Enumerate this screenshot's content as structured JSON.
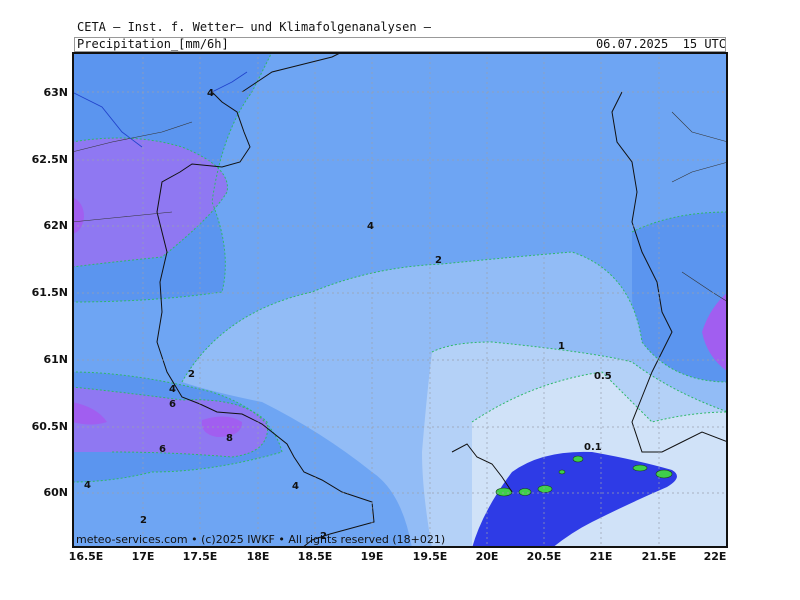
{
  "header": {
    "title": "CETA — Inst. f. Wetter— und Klimafolgenanalysen —",
    "variable": "Precipitation_[mm/6h]",
    "valid_time": "06.07.2025  15 UTC"
  },
  "axes": {
    "lat_labels": [
      "63N",
      "62.5N",
      "62N",
      "61.5N",
      "61N",
      "60.5N",
      "60N"
    ],
    "lon_labels": [
      "16.5E",
      "17E",
      "17.5E",
      "18E",
      "18.5E",
      "19E",
      "19.5E",
      "20E",
      "20.5E",
      "21E",
      "21.5E",
      "22E"
    ]
  },
  "contours": {
    "labels": [
      "4",
      "4",
      "2",
      "1",
      "0.5",
      "0.1",
      "2",
      "4",
      "6",
      "8",
      "6",
      "4",
      "2",
      "4",
      "2"
    ]
  },
  "colors": {
    "lt_0.5": "#d0e2f8",
    "0.5_1": "#b4d1f7",
    "1_2": "#92bcf6",
    "2_4": "#6ea5f3",
    "4_6": "#5b95ef",
    "6_8": "#8f78f2",
    "gt_8": "#a15ef0",
    "heavy_area": "#2e3be6",
    "land_spot": "#3fcf4a",
    "contour_line": "#2fb86a",
    "grid": "#9aa0ad"
  },
  "credit": "meteo-services.com • (c)2025 IWKF • All rights reserved (18+021)"
}
